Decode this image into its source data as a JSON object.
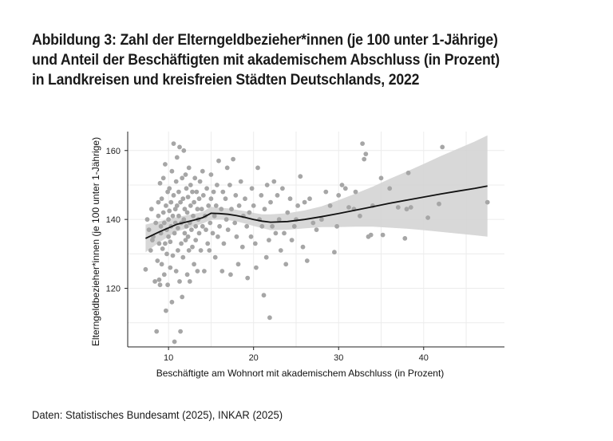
{
  "title_lines": [
    "Abbildung 3: Zahl der Elterngeldbezieher*innen (je 100 unter 1-Jährige)",
    "und Anteil der Beschäftigten mit akademischem Abschluss (in Prozent)",
    "in Landkreisen und kreisfreien Städten Deutschlands, 2022"
  ],
  "source": "Daten: Statistisches Bundesamt (2025), INKAR (2025)",
  "colors": {
    "points": "#a6a6a6",
    "trend": "#111111",
    "band": "#d4d4d4",
    "grid": "#ececec",
    "axis": "#222222"
  },
  "chart_data": {
    "type": "scatter",
    "xlabel": "Beschäftigte am Wohnort mit akademischem Abschluss (in Prozent)",
    "ylabel": "Elterngeldbezieher*innen (je 100 unter 1-Jährige)",
    "xlim": [
      5.2,
      49.5
    ],
    "ylim": [
      103,
      165.5
    ],
    "xticks": [
      10,
      20,
      30,
      40
    ],
    "yticks": [
      120,
      140,
      160
    ],
    "grid": true,
    "points": [
      [
        7.3,
        125.5
      ],
      [
        7.5,
        140
      ],
      [
        7.7,
        137
      ],
      [
        7.9,
        131
      ],
      [
        8.0,
        143
      ],
      [
        8.1,
        134
      ],
      [
        8.2,
        135
      ],
      [
        8.4,
        122
      ],
      [
        8.6,
        107.5
      ],
      [
        8.5,
        139
      ],
      [
        8.7,
        128
      ],
      [
        8.8,
        145
      ],
      [
        8.8,
        141
      ],
      [
        8.9,
        133
      ],
      [
        9.0,
        150.5
      ],
      [
        9.0,
        121
      ],
      [
        9.1,
        138
      ],
      [
        9.1,
        136
      ],
      [
        9.2,
        146
      ],
      [
        9.2,
        127
      ],
      [
        9.3,
        131.5
      ],
      [
        9.4,
        152
      ],
      [
        9.4,
        142
      ],
      [
        9.5,
        139
      ],
      [
        9.5,
        124
      ],
      [
        9.6,
        133
      ],
      [
        9.6,
        156
      ],
      [
        9.7,
        144
      ],
      [
        9.7,
        113.5
      ],
      [
        9.8,
        137
      ],
      [
        9.8,
        130
      ],
      [
        9.9,
        148
      ],
      [
        9.9,
        121
      ],
      [
        10.0,
        140
      ],
      [
        10.0,
        135
      ],
      [
        10.1,
        149
      ],
      [
        10.1,
        142.5
      ],
      [
        10.2,
        133.5
      ],
      [
        10.2,
        126
      ],
      [
        10.3,
        145
      ],
      [
        10.3,
        138
      ],
      [
        10.4,
        116
      ],
      [
        10.4,
        154
      ],
      [
        10.5,
        141
      ],
      [
        10.5,
        129.5
      ],
      [
        10.6,
        162
      ],
      [
        10.6,
        147
      ],
      [
        10.7,
        136
      ],
      [
        10.7,
        104.5
      ],
      [
        10.8,
        143
      ],
      [
        10.8,
        139
      ],
      [
        10.9,
        151
      ],
      [
        10.9,
        125
      ],
      [
        11.0,
        158
      ],
      [
        11.0,
        144
      ],
      [
        11.1,
        131
      ],
      [
        11.1,
        137.5
      ],
      [
        11.2,
        148
      ],
      [
        11.2,
        141
      ],
      [
        11.3,
        161
      ],
      [
        11.3,
        122
      ],
      [
        11.4,
        107.5
      ],
      [
        11.4,
        145
      ],
      [
        11.5,
        139
      ],
      [
        11.5,
        133
      ],
      [
        11.6,
        152
      ],
      [
        11.6,
        117.5
      ],
      [
        11.7,
        146
      ],
      [
        11.7,
        129
      ],
      [
        11.8,
        160
      ],
      [
        11.8,
        140
      ],
      [
        11.9,
        136
      ],
      [
        11.9,
        143
      ],
      [
        12.0,
        134
      ],
      [
        12.0,
        153
      ],
      [
        12.1,
        138
      ],
      [
        12.1,
        149
      ],
      [
        12.2,
        124
      ],
      [
        12.2,
        142
      ],
      [
        12.3,
        135
      ],
      [
        12.3,
        146.5
      ],
      [
        12.4,
        131
      ],
      [
        12.4,
        155
      ],
      [
        12.5,
        139
      ],
      [
        12.5,
        122
      ],
      [
        12.6,
        144
      ],
      [
        12.6,
        150
      ],
      [
        12.7,
        137
      ],
      [
        12.8,
        148
      ],
      [
        12.8,
        132
      ],
      [
        12.9,
        141
      ],
      [
        13.0,
        145
      ],
      [
        13.0,
        127
      ],
      [
        13.1,
        152
      ],
      [
        13.2,
        138
      ],
      [
        13.2,
        134
      ],
      [
        13.3,
        148
      ],
      [
        13.4,
        143
      ],
      [
        13.4,
        125
      ],
      [
        13.5,
        140
      ],
      [
        13.6,
        146
      ],
      [
        13.6,
        136
      ],
      [
        13.7,
        151
      ],
      [
        13.8,
        131
      ],
      [
        13.9,
        143
      ],
      [
        14.0,
        138
      ],
      [
        14.0,
        154
      ],
      [
        14.1,
        147
      ],
      [
        14.2,
        125
      ],
      [
        14.3,
        141
      ],
      [
        14.4,
        137
      ],
      [
        14.5,
        149
      ],
      [
        14.6,
        133
      ],
      [
        14.7,
        144
      ],
      [
        14.8,
        131
      ],
      [
        14.9,
        139
      ],
      [
        15.0,
        146
      ],
      [
        15.0,
        153
      ],
      [
        15.2,
        136
      ],
      [
        15.3,
        148
      ],
      [
        15.4,
        141
      ],
      [
        15.5,
        129
      ],
      [
        15.6,
        144
      ],
      [
        15.7,
        150
      ],
      [
        15.8,
        135
      ],
      [
        15.9,
        157
      ],
      [
        16.0,
        138
      ],
      [
        16.2,
        143
      ],
      [
        16.3,
        125
      ],
      [
        16.4,
        148
      ],
      [
        16.5,
        133
      ],
      [
        16.7,
        146
      ],
      [
        16.8,
        140
      ],
      [
        16.9,
        155
      ],
      [
        17.0,
        137
      ],
      [
        17.2,
        150
      ],
      [
        17.3,
        124
      ],
      [
        17.4,
        143
      ],
      [
        17.6,
        157.5
      ],
      [
        17.8,
        139
      ],
      [
        17.9,
        147
      ],
      [
        18.0,
        135
      ],
      [
        18.2,
        127
      ],
      [
        18.3,
        144
      ],
      [
        18.5,
        151
      ],
      [
        18.7,
        132
      ],
      [
        18.8,
        141
      ],
      [
        19.0,
        146
      ],
      [
        19.2,
        138
      ],
      [
        19.3,
        123
      ],
      [
        19.5,
        142
      ],
      [
        19.7,
        135
      ],
      [
        19.8,
        149
      ],
      [
        20.0,
        144
      ],
      [
        20.2,
        133
      ],
      [
        20.3,
        126
      ],
      [
        20.5,
        155
      ],
      [
        20.7,
        140
      ],
      [
        20.9,
        147
      ],
      [
        21.0,
        138
      ],
      [
        21.2,
        118
      ],
      [
        21.3,
        143
      ],
      [
        21.5,
        129
      ],
      [
        21.6,
        150
      ],
      [
        21.8,
        134
      ],
      [
        21.9,
        111.5
      ],
      [
        22.0,
        145
      ],
      [
        22.2,
        138
      ],
      [
        22.4,
        151
      ],
      [
        22.6,
        136
      ],
      [
        22.8,
        147
      ],
      [
        23.0,
        140
      ],
      [
        23.2,
        131
      ],
      [
        23.4,
        149
      ],
      [
        23.6,
        136
      ],
      [
        23.8,
        127
      ],
      [
        24.0,
        142
      ],
      [
        24.3,
        146
      ],
      [
        24.5,
        134
      ],
      [
        24.8,
        138
      ],
      [
        25.0,
        140
      ],
      [
        25.2,
        144
      ],
      [
        25.5,
        152.5
      ],
      [
        25.8,
        132
      ],
      [
        26.0,
        145
      ],
      [
        26.3,
        128
      ],
      [
        26.6,
        146
      ],
      [
        27.0,
        139
      ],
      [
        27.4,
        137
      ],
      [
        28.0,
        140
      ],
      [
        28.5,
        148
      ],
      [
        29.0,
        144
      ],
      [
        29.5,
        130.5
      ],
      [
        29.8,
        138
      ],
      [
        30.0,
        147
      ],
      [
        30.4,
        150
      ],
      [
        30.8,
        149
      ],
      [
        31.2,
        143.5
      ],
      [
        31.8,
        143
      ],
      [
        32.0,
        148
      ],
      [
        32.5,
        141
      ],
      [
        32.8,
        162
      ],
      [
        33.0,
        157.5
      ],
      [
        33.2,
        159
      ],
      [
        33.5,
        135
      ],
      [
        33.8,
        135.5
      ],
      [
        34.0,
        144
      ],
      [
        35.0,
        152
      ],
      [
        35.2,
        135.5
      ],
      [
        36.0,
        149
      ],
      [
        37.0,
        143.5
      ],
      [
        37.8,
        134.5
      ],
      [
        38.0,
        143
      ],
      [
        38.2,
        153.5
      ],
      [
        38.5,
        143.5
      ],
      [
        40.5,
        140.5
      ],
      [
        41.8,
        144.5
      ],
      [
        42.2,
        161
      ],
      [
        47.5,
        145
      ],
      [
        8.9,
        122.5
      ]
    ],
    "trend": {
      "x": [
        7.3,
        9,
        11,
        13,
        14,
        15,
        16,
        17,
        18,
        19,
        20,
        21,
        22,
        24,
        26,
        28,
        30,
        32,
        34,
        36,
        38,
        40,
        42,
        44,
        46,
        47.5
      ],
      "y": [
        134.5,
        136.5,
        138.6,
        139.8,
        140.5,
        141.8,
        141.7,
        141.5,
        141.1,
        140.6,
        140.0,
        139.5,
        139.2,
        139.4,
        140.0,
        140.8,
        141.7,
        142.7,
        143.7,
        144.7,
        145.6,
        146.5,
        147.4,
        148.2,
        149.0,
        149.7
      ],
      "lower": [
        130.5,
        133.5,
        136.5,
        138.0,
        138.8,
        139.9,
        140.0,
        139.8,
        139.4,
        138.8,
        138.1,
        137.5,
        136.9,
        137.0,
        137.4,
        137.8,
        137.8,
        137.9,
        137.9,
        137.6,
        137.3,
        136.9,
        136.4,
        135.9,
        135.4,
        135.0
      ],
      "upper": [
        138.5,
        139.5,
        140.7,
        141.6,
        142.2,
        143.7,
        143.4,
        143.2,
        142.8,
        142.4,
        141.9,
        141.5,
        141.5,
        141.8,
        142.6,
        143.8,
        145.6,
        147.5,
        149.5,
        151.8,
        153.9,
        156.1,
        158.4,
        160.5,
        162.6,
        164.4
      ]
    }
  }
}
